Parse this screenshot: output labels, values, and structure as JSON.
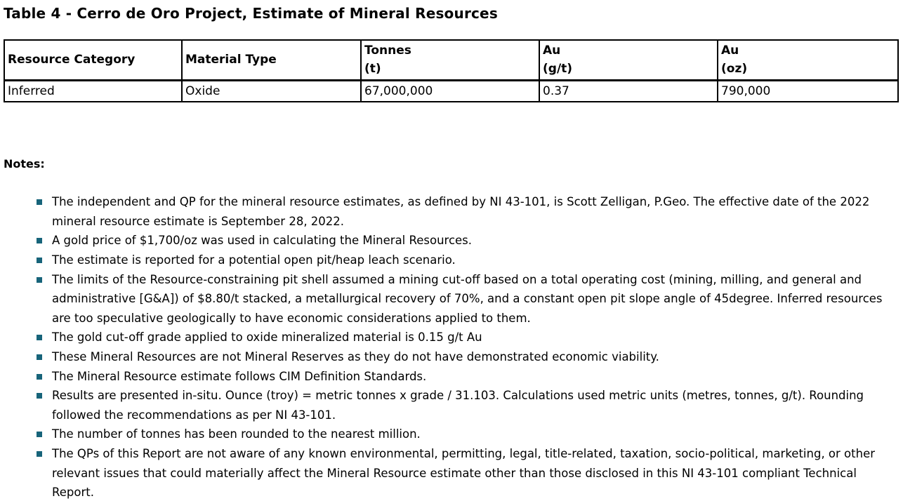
{
  "title": "Table 4 - Cerro de Oro Project, Estimate of Mineral Resources",
  "colors": {
    "background": "#ffffff",
    "text": "#000000",
    "table_border": "#000000",
    "bullet": "#17647a"
  },
  "table": {
    "headers": [
      "Resource Category",
      "Material Type",
      "Tonnes\n(t)",
      "Au\n(g/t)",
      "Au\n(oz)"
    ],
    "rows": [
      [
        "Inferred",
        "Oxide",
        "67,000,000",
        "0.37",
        "790,000"
      ]
    ]
  },
  "notes": {
    "heading": "Notes:",
    "items": [
      "The independent and QP for the mineral resource estimates, as defined by NI 43-101, is Scott Zelligan, P.Geo. The effective date of the 2022 mineral resource estimate is September 28, 2022.",
      "A gold price of $1,700/oz was used in calculating the Mineral Resources.",
      "The estimate is reported for a potential open pit/heap leach scenario.",
      "The limits of the Resource-constraining pit shell assumed a mining cut-off based on a total operating cost (mining, milling, and general and administrative [G&A]) of $8.80/t stacked, a metallurgical recovery of 70%, and a constant open pit slope angle of 45degree. Inferred resources are too speculative geologically to have economic considerations applied to them.",
      "The gold cut-off grade applied to oxide mineralized material is 0.15 g/t Au",
      "These Mineral Resources are not Mineral Reserves as they do not have demonstrated economic viability.",
      "The Mineral Resource estimate follows CIM Definition Standards.",
      "Results are presented in-situ. Ounce (troy) = metric tonnes x grade / 31.103. Calculations used metric units (metres, tonnes, g/t). Rounding followed the recommendations as per NI 43-101.",
      "The number of tonnes has been rounded to the nearest million.",
      "The QPs of this Report are not aware of any known environmental, permitting, legal, title-related, taxation, socio-political, marketing, or other relevant issues that could materially affect the Mineral Resource estimate other than those disclosed in this NI 43-101 compliant Technical Report."
    ]
  }
}
